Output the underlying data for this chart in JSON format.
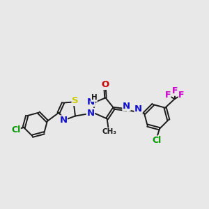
{
  "background_color": "#e8e8e8",
  "bond_color": "#1a1a1a",
  "bond_lw": 1.4,
  "figsize": [
    3.0,
    3.0
  ],
  "dpi": 100,
  "xlim": [
    0,
    10
  ],
  "ylim": [
    0,
    8
  ],
  "S_color": "#cccc00",
  "N_color": "#1010cc",
  "O_color": "#cc0000",
  "Cl_color": "#009900",
  "F_color": "#cc00cc",
  "C_color": "#1a1a1a"
}
